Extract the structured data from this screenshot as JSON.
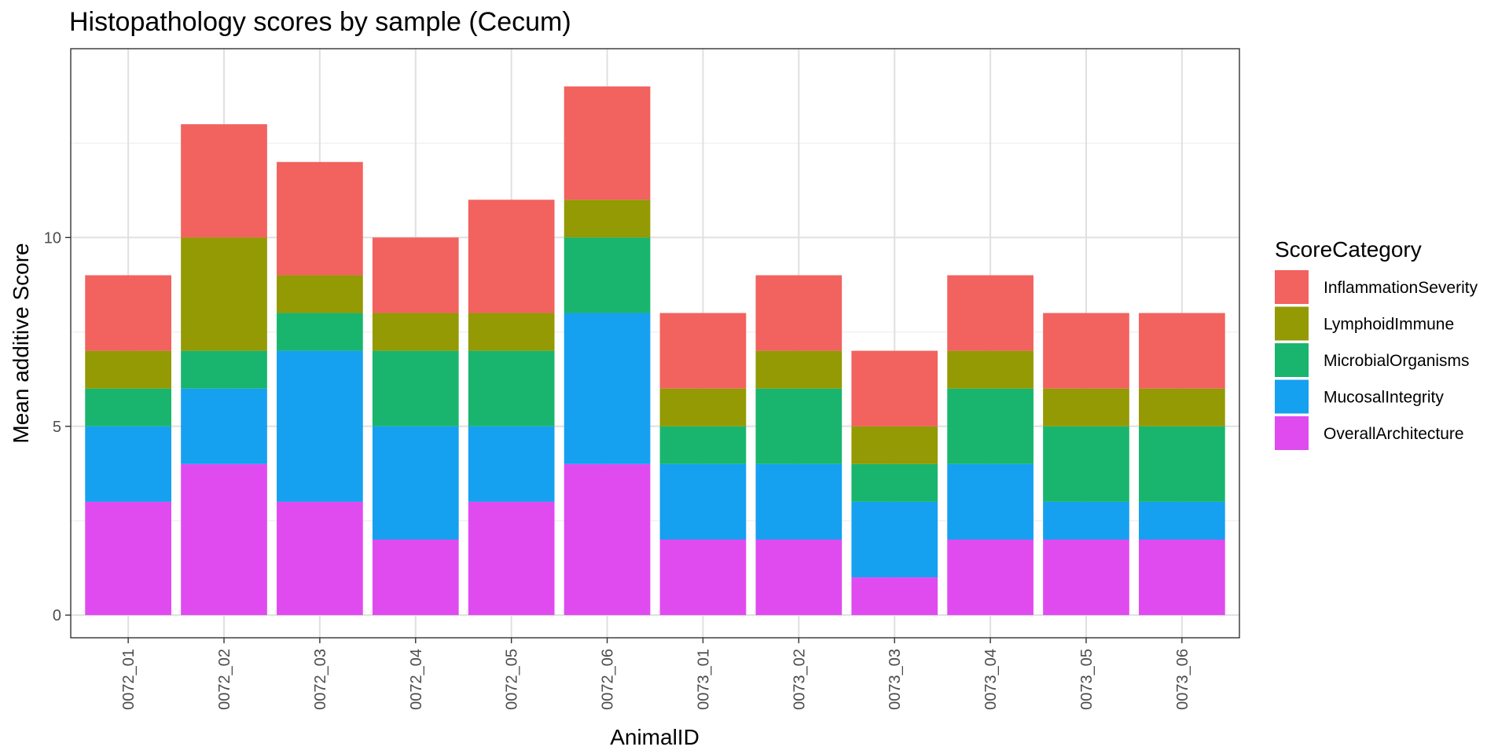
{
  "chart_data": {
    "type": "bar",
    "stacked": true,
    "title": "Histopathology scores by sample (Cecum)",
    "xlabel": "AnimalID",
    "ylabel": "Mean additive Score",
    "ylim": [
      -0.6,
      15
    ],
    "yticks": [
      0,
      5,
      10
    ],
    "grid": true,
    "legend": {
      "title": "ScoreCategory",
      "position": "right"
    },
    "categories": [
      "0072_01",
      "0072_02",
      "0072_03",
      "0072_04",
      "0072_05",
      "0072_06",
      "0073_01",
      "0073_02",
      "0073_03",
      "0073_04",
      "0073_05",
      "0073_06"
    ],
    "series": [
      {
        "name": "OverallArchitecture",
        "color": "#E04BF0",
        "values": [
          3,
          4,
          3,
          2,
          3,
          4,
          2,
          2,
          1,
          2,
          2,
          2
        ]
      },
      {
        "name": "MucosalIntegrity",
        "color": "#16A0F0",
        "values": [
          2,
          2,
          4,
          3,
          2,
          4,
          2,
          2,
          2,
          2,
          1,
          1
        ]
      },
      {
        "name": "MicrobialOrganisms",
        "color": "#19B56E",
        "values": [
          1,
          1,
          1,
          2,
          2,
          2,
          1,
          2,
          1,
          2,
          2,
          2
        ]
      },
      {
        "name": "LymphoidImmune",
        "color": "#939A03",
        "values": [
          1,
          3,
          1,
          1,
          1,
          1,
          1,
          1,
          1,
          1,
          1,
          1
        ]
      },
      {
        "name": "InflammationSeverity",
        "color": "#F2625E",
        "values": [
          2,
          3,
          3,
          2,
          3,
          3,
          2,
          2,
          2,
          2,
          2,
          2
        ]
      }
    ],
    "legend_order": [
      "InflammationSeverity",
      "LymphoidImmune",
      "MicrobialOrganisms",
      "MucosalIntegrity",
      "OverallArchitecture"
    ]
  }
}
